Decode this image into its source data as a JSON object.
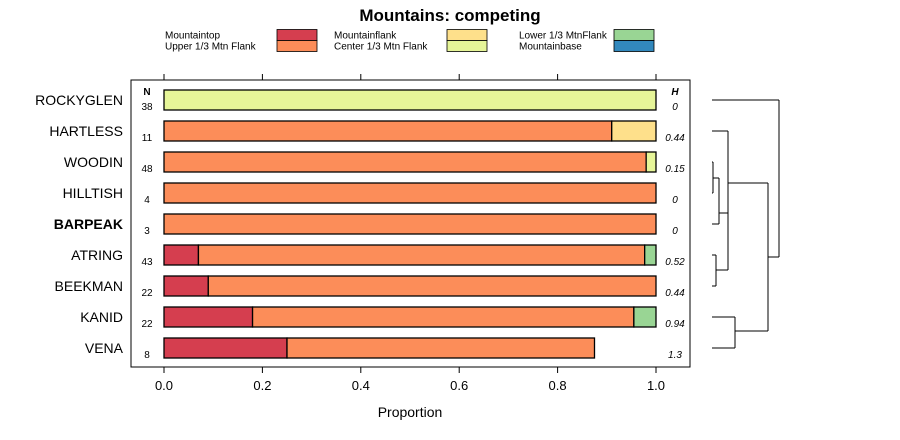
{
  "chart_data": {
    "type": "bar",
    "orientation": "horizontal",
    "stacked": true,
    "title": "Mountains: competing",
    "xlabel": "Proportion",
    "xlim": [
      0,
      1
    ],
    "xticks": [
      "0.0",
      "0.2",
      "0.4",
      "0.6",
      "0.8",
      "1.0"
    ],
    "n_header": "N",
    "h_header": "H",
    "legend": [
      {
        "name": "Mountaintop",
        "color": "#d53e4f"
      },
      {
        "name": "Upper 1/3 Mtn Flank",
        "color": "#fc8d59"
      },
      {
        "name": "Mountainflank",
        "color": "#fee08b"
      },
      {
        "name": "Center 1/3 Mtn Flank",
        "color": "#e6f598"
      },
      {
        "name": "Lower 1/3 MtnFlank",
        "color": "#99d594"
      },
      {
        "name": "Mountainbase",
        "color": "#3288bd"
      }
    ],
    "categories": [
      {
        "label": "ROCKYGLEN",
        "bold": false,
        "n": "38",
        "h": "0",
        "segments": [
          {
            "series": "Center 1/3 Mtn Flank",
            "value": 1.0
          }
        ]
      },
      {
        "label": "HARTLESS",
        "bold": false,
        "n": "11",
        "h": "0.44",
        "segments": [
          {
            "series": "Upper 1/3 Mtn Flank",
            "value": 0.91
          },
          {
            "series": "Mountainflank",
            "value": 0.09
          }
        ]
      },
      {
        "label": "WOODIN",
        "bold": false,
        "n": "48",
        "h": "0.15",
        "segments": [
          {
            "series": "Upper 1/3 Mtn Flank",
            "value": 0.98
          },
          {
            "series": "Center 1/3 Mtn Flank",
            "value": 0.02
          }
        ]
      },
      {
        "label": "HILLTISH",
        "bold": false,
        "n": "4",
        "h": "0",
        "segments": [
          {
            "series": "Upper 1/3 Mtn Flank",
            "value": 1.0
          }
        ]
      },
      {
        "label": "BARPEAK",
        "bold": true,
        "n": "3",
        "h": "0",
        "segments": [
          {
            "series": "Upper 1/3 Mtn Flank",
            "value": 1.0
          }
        ]
      },
      {
        "label": "ATRING",
        "bold": false,
        "n": "43",
        "h": "0.52",
        "segments": [
          {
            "series": "Mountaintop",
            "value": 0.07
          },
          {
            "series": "Upper 1/3 Mtn Flank",
            "value": 0.907
          },
          {
            "series": "Lower 1/3 MtnFlank",
            "value": 0.023
          }
        ]
      },
      {
        "label": "BEEKMAN",
        "bold": false,
        "n": "22",
        "h": "0.44",
        "segments": [
          {
            "series": "Mountaintop",
            "value": 0.09
          },
          {
            "series": "Upper 1/3 Mtn Flank",
            "value": 0.91
          }
        ]
      },
      {
        "label": "KANID",
        "bold": false,
        "n": "22",
        "h": "0.94",
        "segments": [
          {
            "series": "Mountaintop",
            "value": 0.18
          },
          {
            "series": "Upper 1/3 Mtn Flank",
            "value": 0.775
          },
          {
            "series": "Lower 1/3 MtnFlank",
            "value": 0.045
          }
        ]
      },
      {
        "label": "VENA",
        "bold": false,
        "n": "8",
        "h": "1.3",
        "segments": [
          {
            "series": "Mountaintop",
            "value": 0.25
          },
          {
            "series": "Upper 1/3 Mtn Flank",
            "value": 0.625
          }
        ]
      }
    ],
    "grid": false,
    "legend_position": "top",
    "dendrogram": true
  }
}
